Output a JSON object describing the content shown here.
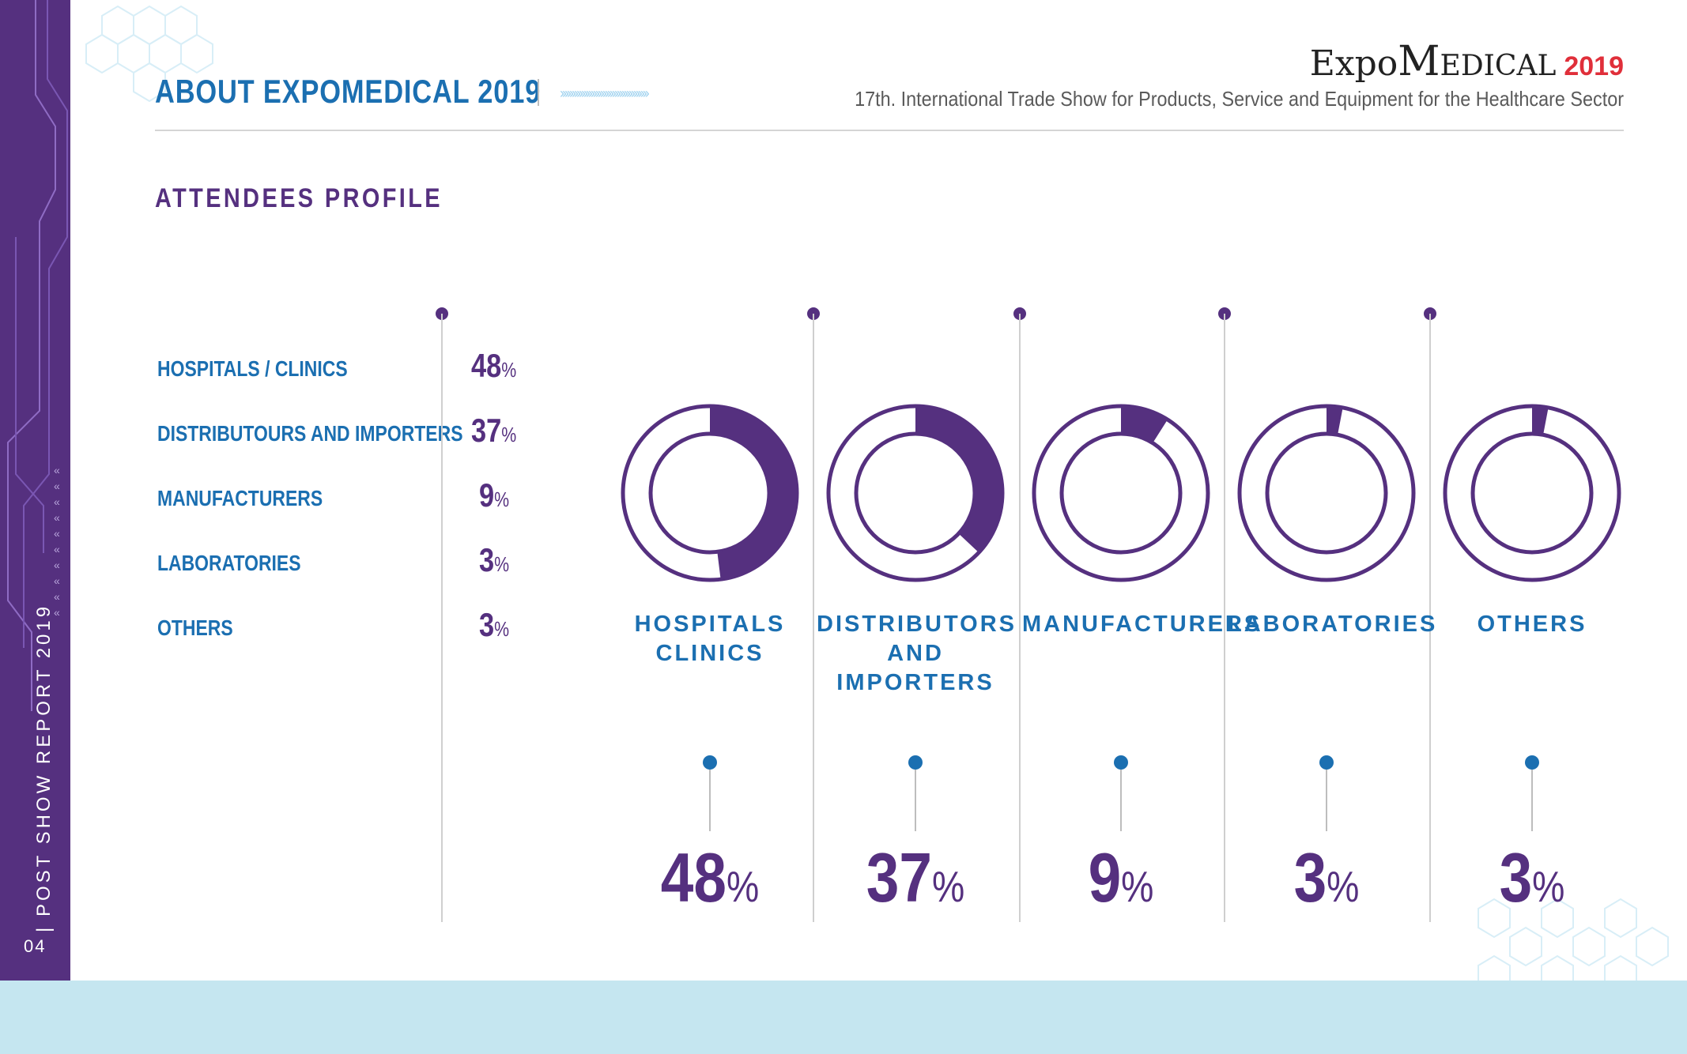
{
  "header": {
    "title": "ABOUT EXPOMEDICAL 2019",
    "logo_expo": "Expo",
    "logo_medical": "Medical",
    "logo_year": "2019",
    "subtitle": "17th. International Trade Show for Products, Service and Equipment for the Healthcare Sector"
  },
  "sidebar": {
    "vertical_text": "POST SHOW REPORT 2019",
    "page_number": "04"
  },
  "section_title": "ATTENDEES PROFILE",
  "colors": {
    "purple": "#55307f",
    "blue": "#1b6fb1",
    "light_blue_band": "#c5e6f0"
  },
  "chart_data": [
    {
      "type": "table",
      "rows": [
        {
          "label": "HOSPITALS / CLINICS",
          "value": 48,
          "display": "48"
        },
        {
          "label": "DISTRIBUTOURS AND IMPORTERS",
          "value": 37,
          "display": "37"
        },
        {
          "label": "MANUFACTURERS",
          "value": 9,
          "display": "9"
        },
        {
          "label": "LABORATORIES",
          "value": 3,
          "display": "3"
        },
        {
          "label": "OTHERS",
          "value": 3,
          "display": "3"
        }
      ],
      "unit": "%"
    },
    {
      "type": "pie",
      "style": "donut",
      "unit": "%",
      "series": [
        {
          "label_lines": [
            "HOSPITALS",
            "CLINICS"
          ],
          "value": 48,
          "display": "48"
        },
        {
          "label_lines": [
            "DISTRIBUTORS",
            "AND IMPORTERS"
          ],
          "value": 37,
          "display": "37"
        },
        {
          "label_lines": [
            "MANUFACTURERS"
          ],
          "value": 9,
          "display": "9"
        },
        {
          "label_lines": [
            "LABORATORIES"
          ],
          "value": 3,
          "display": "3"
        },
        {
          "label_lines": [
            "OTHERS"
          ],
          "value": 3,
          "display": "3"
        }
      ]
    }
  ]
}
